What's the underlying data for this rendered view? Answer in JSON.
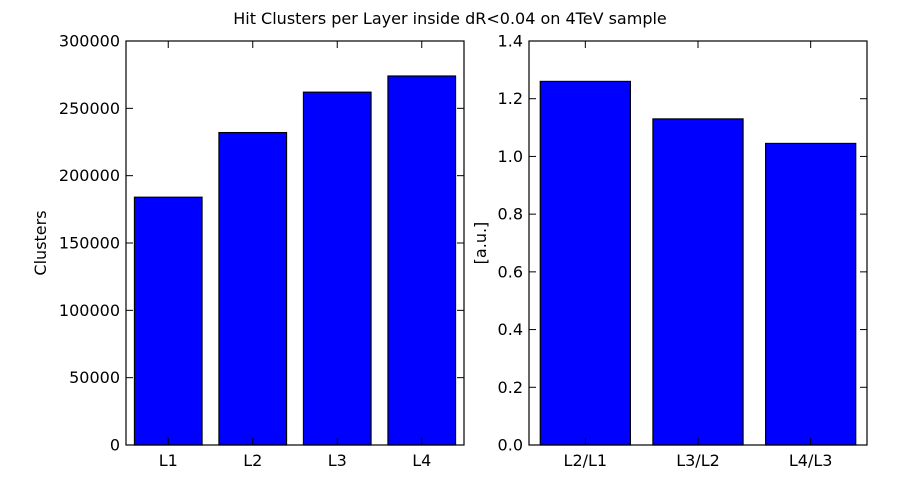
{
  "figure": {
    "title": "Hit Clusters per Layer inside dR<0.04 on 4TeV sample"
  },
  "colors": {
    "bar_fill": "#0000ff",
    "bar_edge": "#000000",
    "axes_edge": "#000000",
    "background": "#ffffff"
  },
  "chart_data": [
    {
      "type": "bar",
      "title": "",
      "categories": [
        "L1",
        "L2",
        "L3",
        "L4"
      ],
      "values": [
        184000,
        232000,
        262000,
        274000
      ],
      "xlabel": "",
      "ylabel": "Clusters",
      "ylim": [
        0,
        300000
      ],
      "yticks": [
        0,
        50000,
        100000,
        150000,
        200000,
        250000,
        300000
      ],
      "ytick_labels": [
        "0",
        "50000",
        "100000",
        "150000",
        "200000",
        "250000",
        "300000"
      ],
      "grid": false
    },
    {
      "type": "bar",
      "title": "",
      "categories": [
        "L2/L1",
        "L3/L2",
        "L4/L3"
      ],
      "values": [
        1.26,
        1.13,
        1.045
      ],
      "xlabel": "",
      "ylabel": "[a.u.]",
      "ylim": [
        0,
        1.4
      ],
      "yticks": [
        0,
        0.2,
        0.4,
        0.6,
        0.8,
        1.0,
        1.2,
        1.4
      ],
      "ytick_labels": [
        "0.0",
        "0.2",
        "0.4",
        "0.6",
        "0.8",
        "1.0",
        "1.2",
        "1.4"
      ],
      "grid": false
    }
  ]
}
